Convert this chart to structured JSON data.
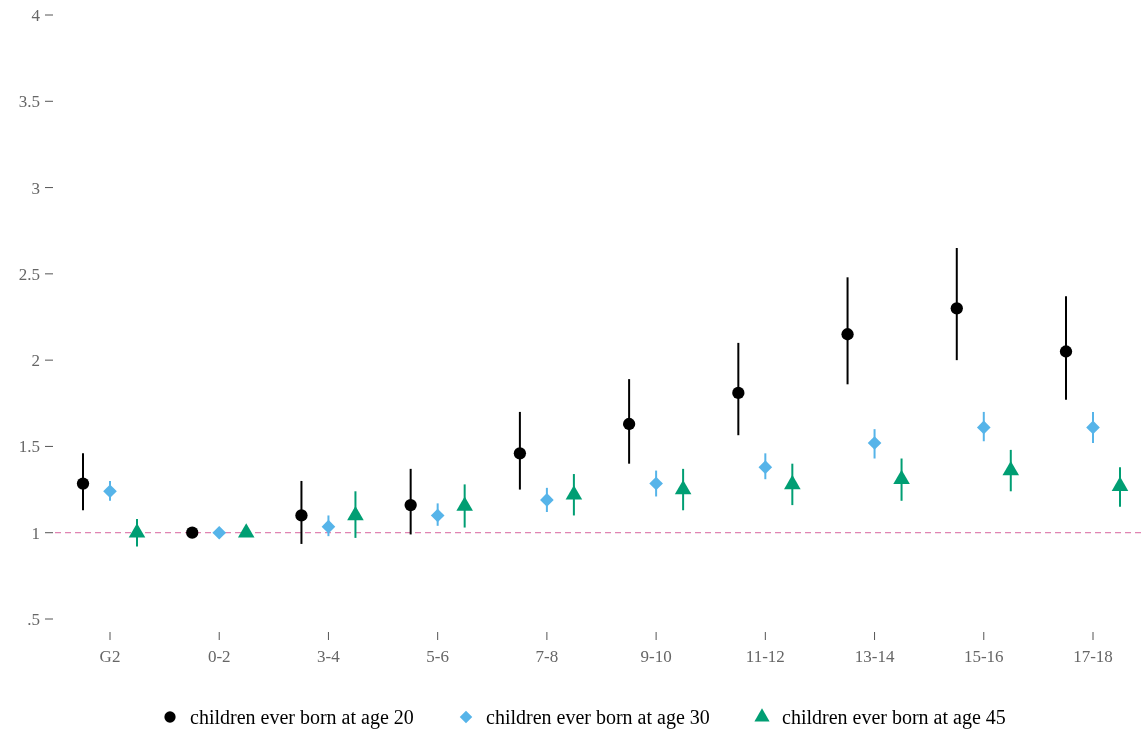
{
  "chart_data": {
    "type": "scatter",
    "categories": [
      "G2",
      "0-2",
      "3-4",
      "5-6",
      "7-8",
      "9-10",
      "11-12",
      "13-14",
      "15-16",
      "17-18"
    ],
    "ylim": [
      0.5,
      4
    ],
    "yticks": [
      {
        "value": 0.5,
        "label": ".5"
      },
      1,
      1.5,
      2,
      2.5,
      3,
      3.5,
      4
    ],
    "grid": false,
    "legend": "bottom",
    "series": [
      {
        "name": "children ever born at age 20",
        "color": "#000000",
        "marker": "circle",
        "values": [
          1.285,
          1.0,
          1.1,
          1.16,
          1.46,
          1.63,
          1.81,
          2.15,
          2.3,
          2.05
        ],
        "errors": [
          [
            1.13,
            1.46
          ],
          null,
          [
            0.935,
            1.3
          ],
          [
            0.99,
            1.37
          ],
          [
            1.25,
            1.7
          ],
          [
            1.4,
            1.89
          ],
          [
            1.565,
            2.1
          ],
          [
            1.86,
            2.48
          ],
          [
            2.0,
            2.65
          ],
          [
            1.77,
            2.37
          ]
        ]
      },
      {
        "name": "children ever born at age 30",
        "color": "#56b4e9",
        "marker": "diamond",
        "values": [
          1.24,
          1.0,
          1.035,
          1.1,
          1.19,
          1.285,
          1.38,
          1.52,
          1.61,
          1.61
        ],
        "errors": [
          [
            1.185,
            1.3
          ],
          null,
          [
            0.98,
            1.1
          ],
          [
            1.04,
            1.17
          ],
          [
            1.12,
            1.26
          ],
          [
            1.21,
            1.36
          ],
          [
            1.31,
            1.46
          ],
          [
            1.43,
            1.6
          ],
          [
            1.53,
            1.7
          ],
          [
            1.52,
            1.7
          ]
        ]
      },
      {
        "name": "children ever born at age 45",
        "color": "#009e73",
        "marker": "triangle",
        "values": [
          1.0,
          1.0,
          1.1,
          1.155,
          1.22,
          1.25,
          1.28,
          1.31,
          1.36,
          1.27
        ],
        "errors": [
          [
            0.92,
            1.08
          ],
          null,
          [
            0.97,
            1.24
          ],
          [
            1.03,
            1.28
          ],
          [
            1.1,
            1.34
          ],
          [
            1.13,
            1.37
          ],
          [
            1.16,
            1.4
          ],
          [
            1.185,
            1.43
          ],
          [
            1.24,
            1.48
          ],
          [
            1.15,
            1.38
          ]
        ]
      }
    ],
    "ref_lines": [
      {
        "axis": "y",
        "value": 1,
        "color": "#d9659f",
        "line_style": "dashed"
      }
    ]
  }
}
